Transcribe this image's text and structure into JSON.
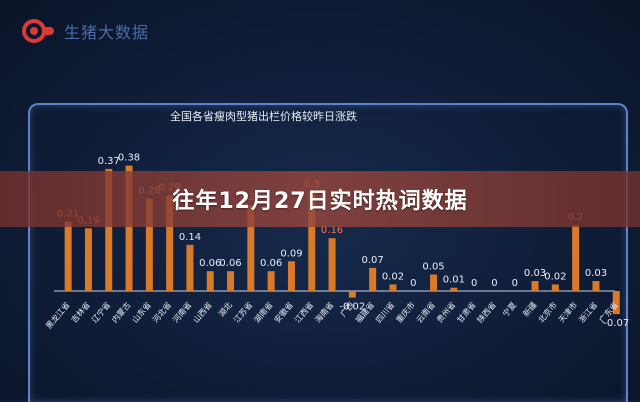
{
  "brand": {
    "name": "生猪大数据"
  },
  "banner": {
    "text": "往年12月27日实时热词数据"
  },
  "colors": {
    "bar": "#d97a2b",
    "label": "#e8ecf5",
    "positive_label_warm": "#ff7a3d",
    "frame": "#5d84c7",
    "axis": "#c9d3e6"
  },
  "chart_data": {
    "type": "bar",
    "title": "全国各省瘦肉型猪出栏价格较昨日涨跌",
    "categories": [
      "黑龙江省",
      "吉林省",
      "辽宁省",
      "内蒙古",
      "山东省",
      "河北省",
      "河南省",
      "山西省",
      "湖北",
      "江苏省",
      "湖南省",
      "安徽省",
      "江西省",
      "海南省",
      "广西",
      "福建省",
      "四川省",
      "重庆市",
      "云南省",
      "贵州省",
      "甘肃省",
      "陕西省",
      "宁夏",
      "新疆",
      "北京市",
      "天津市",
      "浙江省",
      "广东省"
    ],
    "values": [
      0.21,
      0.19,
      0.37,
      0.38,
      0.28,
      0.29,
      0.14,
      0.06,
      0.06,
      0.26,
      0.06,
      0.09,
      0.3,
      0.16,
      -0.02,
      0.07,
      0.02,
      0,
      0.05,
      0.01,
      0,
      0,
      0,
      0.03,
      0.02,
      0.2,
      0.03,
      -0.07
    ],
    "data_labels": [
      "0.21",
      "0.19",
      "0.37",
      "0.38",
      "0.28",
      "0.29",
      "0.14",
      "0.06",
      "0.06",
      "0.26",
      "0.06",
      "0.09",
      "0.3",
      "0.16",
      "-0.02",
      "0.07",
      "0.02",
      "0",
      "0.05",
      "0.01",
      "0",
      "0",
      "0",
      "0.03",
      "0.02",
      "0.2",
      "0.03",
      "-0.07"
    ],
    "label_colors": [
      "warm",
      "warm",
      "light",
      "light",
      "warm",
      "warm",
      "light",
      "light",
      "light",
      "warm",
      "light",
      "light",
      "warm",
      "warm",
      "light",
      "light",
      "light",
      "light",
      "light",
      "light",
      "light",
      "light",
      "light",
      "light",
      "light",
      "warm",
      "light",
      "light"
    ],
    "ylim": [
      -0.1,
      0.4
    ],
    "grid": false,
    "legend": "none"
  }
}
